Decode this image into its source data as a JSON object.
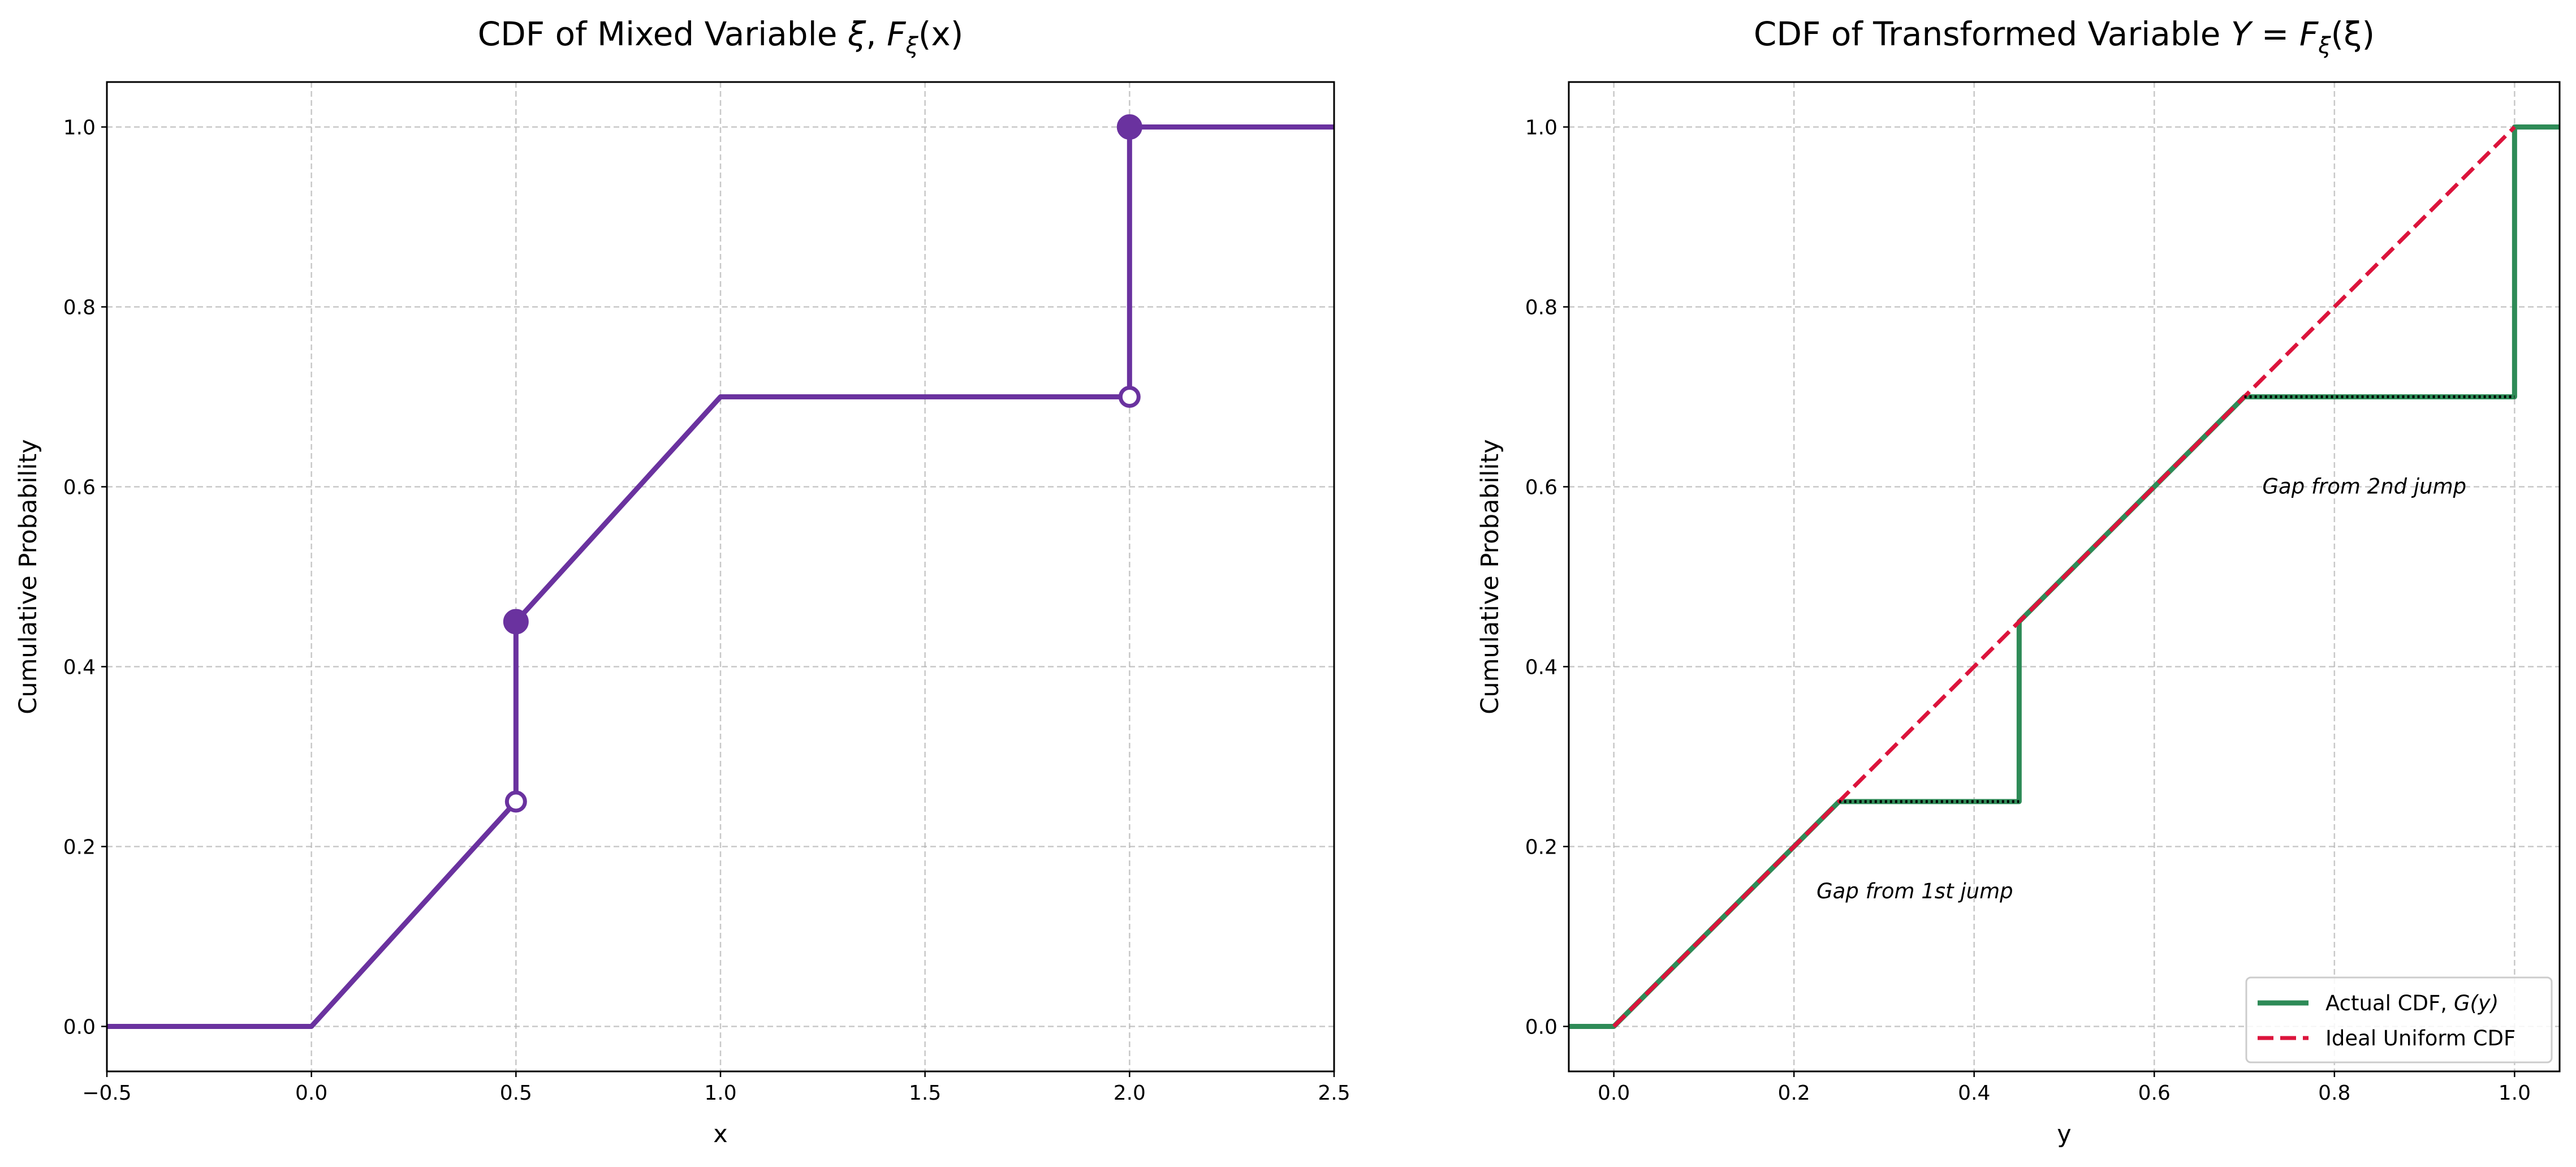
{
  "chart_data": [
    {
      "type": "line",
      "title": {
        "prefix": "CDF of Mixed Variable ",
        "sym": "ξ",
        "sep": ", ",
        "F": "F",
        "sub": "ξ",
        "arg": "(x)"
      },
      "xlabel": "x",
      "ylabel": "Cumulative Probability",
      "xlim": [
        -0.5,
        2.5
      ],
      "ylim": [
        -0.05,
        1.05
      ],
      "xticks": [
        -0.5,
        0.0,
        0.5,
        1.0,
        1.5,
        2.0,
        2.5
      ],
      "xtick_labels": [
        "−0.5",
        "0.0",
        "0.5",
        "1.0",
        "1.5",
        "2.0",
        "2.5"
      ],
      "yticks": [
        0.0,
        0.2,
        0.4,
        0.6,
        0.8,
        1.0
      ],
      "ytick_labels": [
        "0.0",
        "0.2",
        "0.4",
        "0.6",
        "0.8",
        "1.0"
      ],
      "grid": true,
      "series": [
        {
          "name": "F_xi(x)",
          "color": "#6a329f",
          "x": [
            -0.5,
            0.0,
            0.5,
            0.5,
            1.0,
            2.0,
            2.0,
            2.5
          ],
          "y": [
            0.0,
            0.0,
            0.25,
            0.45,
            0.7,
            0.7,
            1.0,
            1.0
          ]
        }
      ],
      "markers": [
        {
          "x": 0.5,
          "y": 0.25,
          "filled": false
        },
        {
          "x": 0.5,
          "y": 0.45,
          "filled": true
        },
        {
          "x": 2.0,
          "y": 0.7,
          "filled": false
        },
        {
          "x": 2.0,
          "y": 1.0,
          "filled": true
        }
      ]
    },
    {
      "type": "line",
      "title": {
        "prefix": "CDF of Transformed Variable ",
        "Y": "Y",
        "eq": " = ",
        "F": "F",
        "sub": "ξ",
        "arg": "(ξ)"
      },
      "xlabel": "y",
      "ylabel": "Cumulative Probability",
      "xlim": [
        -0.05,
        1.05
      ],
      "ylim": [
        -0.05,
        1.05
      ],
      "xticks": [
        0.0,
        0.2,
        0.4,
        0.6,
        0.8,
        1.0
      ],
      "xtick_labels": [
        "0.0",
        "0.2",
        "0.4",
        "0.6",
        "0.8",
        "1.0"
      ],
      "yticks": [
        0.0,
        0.2,
        0.4,
        0.6,
        0.8,
        1.0
      ],
      "ytick_labels": [
        "0.0",
        "0.2",
        "0.4",
        "0.6",
        "0.8",
        "1.0"
      ],
      "grid": true,
      "series": [
        {
          "name": "Actual CDF, G(y)",
          "legend_prefix": "Actual CDF, ",
          "legend_math": "G(y)",
          "color": "#2e8b57",
          "style": "solid",
          "x": [
            -0.05,
            0.0,
            0.25,
            0.45,
            0.45,
            0.7,
            1.0,
            1.0,
            1.05
          ],
          "y": [
            0.0,
            0.0,
            0.25,
            0.25,
            0.45,
            0.7,
            0.7,
            1.0,
            1.0
          ]
        },
        {
          "name": "Ideal Uniform CDF",
          "color": "#dc143c",
          "style": "dashed",
          "x": [
            0.0,
            1.0
          ],
          "y": [
            0.0,
            1.0
          ]
        }
      ],
      "gap_lines": [
        {
          "x": [
            0.25,
            0.45
          ],
          "y": 0.25
        },
        {
          "x": [
            0.7,
            1.0
          ],
          "y": 0.7
        }
      ],
      "annotations": [
        {
          "text": "Gap from 1st jump",
          "x": 0.225,
          "y": 0.15
        },
        {
          "text": "Gap from 2nd jump",
          "x": 0.72,
          "y": 0.6
        }
      ],
      "legend": "lower-right"
    }
  ]
}
